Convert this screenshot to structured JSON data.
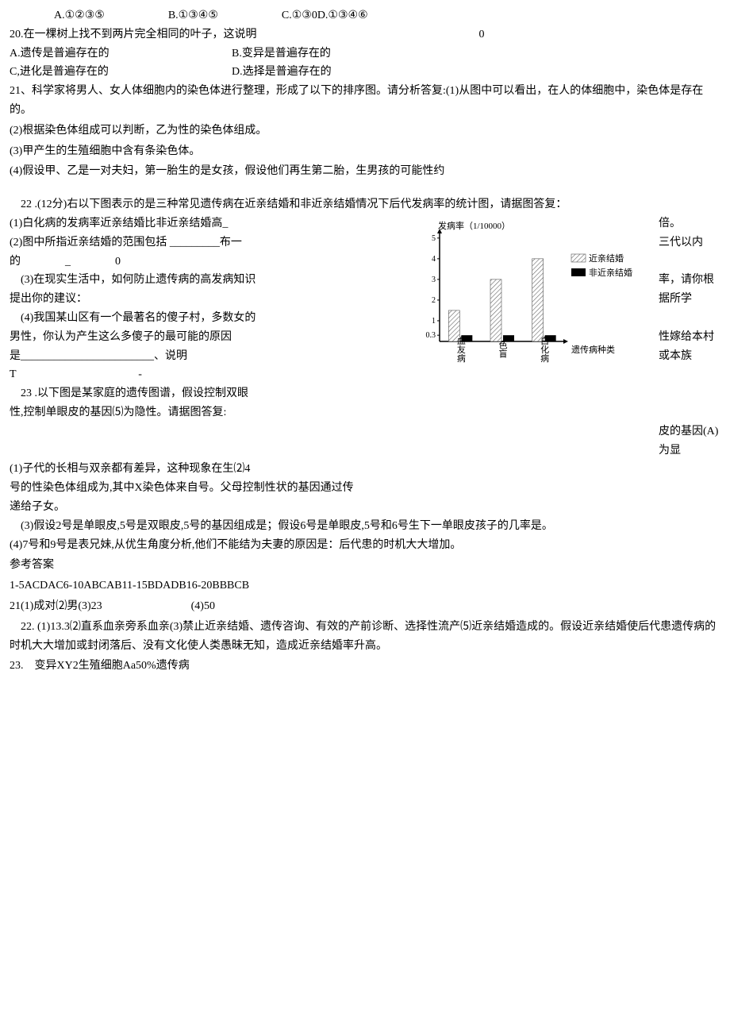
{
  "q19_options": {
    "a": "A.①②③⑤",
    "b": "B.①③④⑤",
    "c": "C.①③0D.①③④⑥"
  },
  "q20": {
    "stem": "20.在一棵树上找不到两片完全相同的叶子，这说明",
    "paren": "0",
    "optA": "A.遗传是普遍存在的",
    "optB": "B.变异是普遍存在的",
    "optC": "C,进化是普遍存在的",
    "optD": "D.选择是普遍存在的"
  },
  "q21": {
    "stem": "21、科学家将男人、女人体细胞内的染色体进行整理，形成了以下的排序图。请分析答复:(1)从图中可以看出，在人的体细胞中，染色体是存在的。",
    "p2": "(2)根据染色体组成可以判断，乙为性的染色体组成。",
    "p3": "(3)甲产生的生殖细胞中含有条染色体。",
    "p4": "(4)假设甲、乙是一对夫妇，第一胎生的是女孩，假设他们再生第二胎，生男孩的可能性约"
  },
  "q22": {
    "stem": "　22 .(12分)右以下图表示的是三种常见遗传病在近亲结婚和非近亲结婚情况下后代发病率的统计图，请据图答复：",
    "l1a": "(1)白化病的发病率近亲结婚比非近亲结婚高_",
    "l1b": "倍。",
    "l2a": "(2)图中所指近亲结婚的范围包括 _________布一",
    "l2b": "三代以内",
    "l3a": "的　　　　_　　　　0",
    "l4a": "　(3)在现实生活中，如何防止遗传病的高发病知识",
    "l4b": "率，请你根据所学",
    "l5a": "提出你的建议：",
    "l6a": "　(4)我国某山区有一个最著名的傻子村，多数女的",
    "l6b": "性嫁给本村或本族",
    "l7a": "男性，你认为产生这么多傻子的最可能的原因",
    "l8a": "是________________________、说明",
    "l9a": "T　　　　　　　　　　　-"
  },
  "chart": {
    "ylabel": "发病率（1/10000）",
    "xlabel": "遗传病种类",
    "categories": [
      "血友病",
      "色盲",
      "白化病"
    ],
    "ytick_labels": [
      "0.3",
      "1",
      "2",
      "3",
      "4",
      "5"
    ],
    "ytick_pos": [
      0.3,
      1,
      2,
      3,
      4,
      5
    ],
    "ylim": [
      0,
      5.3
    ],
    "series": [
      {
        "name": "近亲结婚",
        "key": "hatch",
        "values": [
          1.5,
          3.0,
          4.0
        ]
      },
      {
        "name": "非近亲结婚",
        "key": "solid",
        "values": [
          0.3,
          0.3,
          0.3
        ]
      }
    ],
    "bar_colors": {
      "hatch": "#888888",
      "solid": "#000000"
    },
    "axis_color": "#000000",
    "background": "#ffffff"
  },
  "q23": {
    "stem": "　23 .以下图是某家庭的遗传图谱，假设控制双眼",
    "stem_right": "皮的基因(A)为显",
    "l2": "性,控制单眼皮的基因⑸为隐性。请据图答复:",
    "p1": "(1)子代的长相与双亲都有差异，这种现象在生⑵4",
    "p1b": "",
    "p2": "号的性染色体组成为,其中X染色体来自号。父母控制性状的基因通过传",
    "p2b": "递给子女。",
    "p3": "　(3)假设2号是单眼皮,5号是双眼皮,5号的基因组成是；假设6号是单眼皮,5号和6号生下一单眼皮孩子的几率是。",
    "p4": "(4)7号和9号是表兄妹,从优生角度分析,他们不能结为夫妻的原因是：后代患的时机大大增加。"
  },
  "answers": {
    "title": "参考答案",
    "l1": "1-5ACDAC6-10ABCAB11-15BDADB16-20BBBCB",
    "l2": "21(1)成对⑵男(3)23　　　　　　　　(4)50",
    "l3": "　22. (1)13.3⑵直系血亲旁系血亲(3)禁止近亲结婚、遗传咨询、有效的产前诊断、选择性流产⑸近亲结婚造成的。假设近亲结婚使后代患遗传病的时机大大增加或封闭落后、没有文化使人类愚昧无知，造成近亲结婚率升高。",
    "l4": "23.　变异XY2生殖细胞Aa50%遗传病"
  }
}
